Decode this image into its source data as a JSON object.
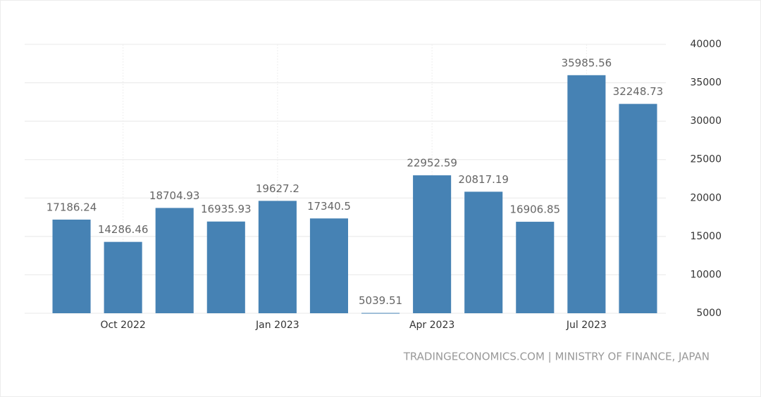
{
  "chart_data": {
    "type": "bar",
    "categories": [
      null,
      "Oct 2022",
      null,
      null,
      "Jan 2023",
      null,
      null,
      "Apr 2023",
      null,
      null,
      "Jul 2023",
      null
    ],
    "values": [
      17186.24,
      14286.46,
      18704.93,
      16935.93,
      19627.2,
      17340.5,
      5039.51,
      22952.59,
      20817.19,
      16906.85,
      35985.56,
      32248.73
    ],
    "color": "#4682b4",
    "ylim": [
      5000,
      40000
    ],
    "yticks": [
      5000,
      10000,
      15000,
      20000,
      25000,
      30000,
      35000,
      40000
    ],
    "grid": true,
    "source": "TRADINGECONOMICS.COM | MINISTRY OF FINANCE, JAPAN"
  }
}
